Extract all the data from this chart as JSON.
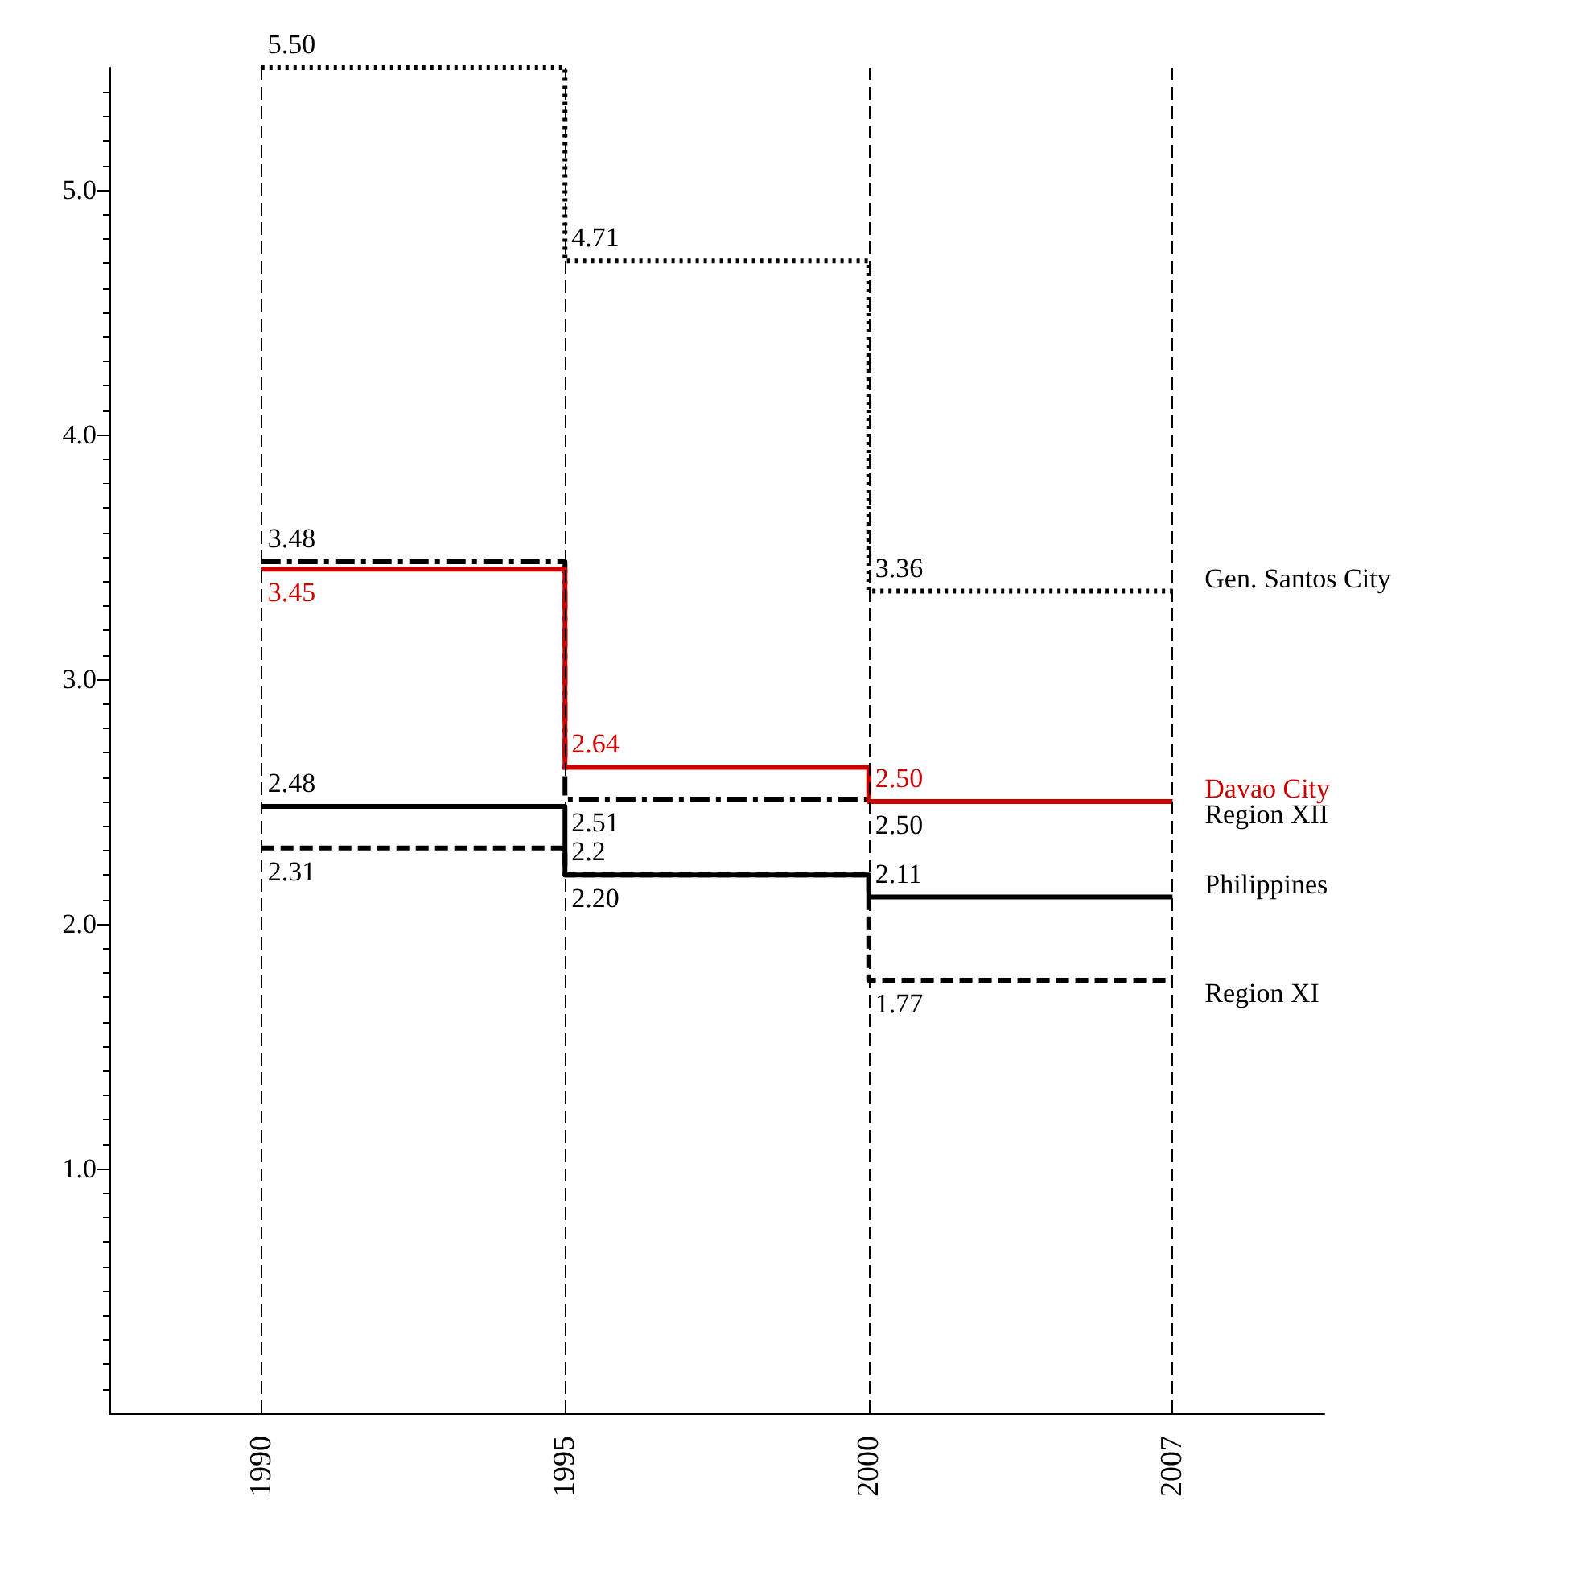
{
  "chart_data": {
    "type": "step",
    "categories": [
      "1990",
      "1995",
      "2000",
      "2007"
    ],
    "ylim": [
      0,
      5.5
    ],
    "yticks": [
      {
        "value": 1,
        "label": "1.0"
      },
      {
        "value": 2,
        "label": "2.0"
      },
      {
        "value": 3,
        "label": "3.0"
      },
      {
        "value": 4,
        "label": "4.0"
      },
      {
        "value": 5,
        "label": "5.0"
      }
    ],
    "grid": false,
    "legend": false,
    "marker": "none",
    "series": [
      {
        "name": "Gen. Santos City",
        "color": "#000000",
        "line_style": "dotted",
        "values": [
          5.5,
          4.71,
          3.36,
          3.36
        ],
        "value_labels": [
          "5.50",
          "4.71",
          "3.36",
          null
        ]
      },
      {
        "name": "Region XII",
        "color": "#000000",
        "line_style": "dashdot",
        "values": [
          3.48,
          2.51,
          2.5,
          2.5
        ],
        "value_labels": [
          "3.48",
          "2.51",
          "2.50",
          null
        ]
      },
      {
        "name": "Davao City",
        "color": "#cc0000",
        "line_style": "solid",
        "values": [
          3.45,
          2.64,
          2.5,
          2.5
        ],
        "value_labels": [
          "3.45",
          "2.64",
          "2.50",
          null
        ]
      },
      {
        "name": "Philippines",
        "color": "#000000",
        "line_style": "solid",
        "values": [
          2.48,
          2.2,
          2.11,
          2.11
        ],
        "value_labels": [
          "2.48",
          "2.20",
          "2.11",
          null
        ]
      },
      {
        "name": "Region XI",
        "color": "#000000",
        "line_style": "dashed",
        "values": [
          2.31,
          2.2,
          1.77,
          1.77
        ],
        "value_labels": [
          "2.31",
          "2.2",
          "1.77",
          null
        ]
      }
    ],
    "ref_lines": [
      {
        "axis": "x",
        "value": "1990",
        "label": null,
        "color": "#000000",
        "line_style": "dashed"
      },
      {
        "axis": "x",
        "value": "1995",
        "label": null,
        "color": "#000000",
        "line_style": "dashed"
      },
      {
        "axis": "x",
        "value": "2000",
        "label": null,
        "color": "#000000",
        "line_style": "dashed"
      },
      {
        "axis": "x",
        "value": "2007",
        "label": null,
        "color": "#000000",
        "line_style": "dashed"
      }
    ]
  }
}
